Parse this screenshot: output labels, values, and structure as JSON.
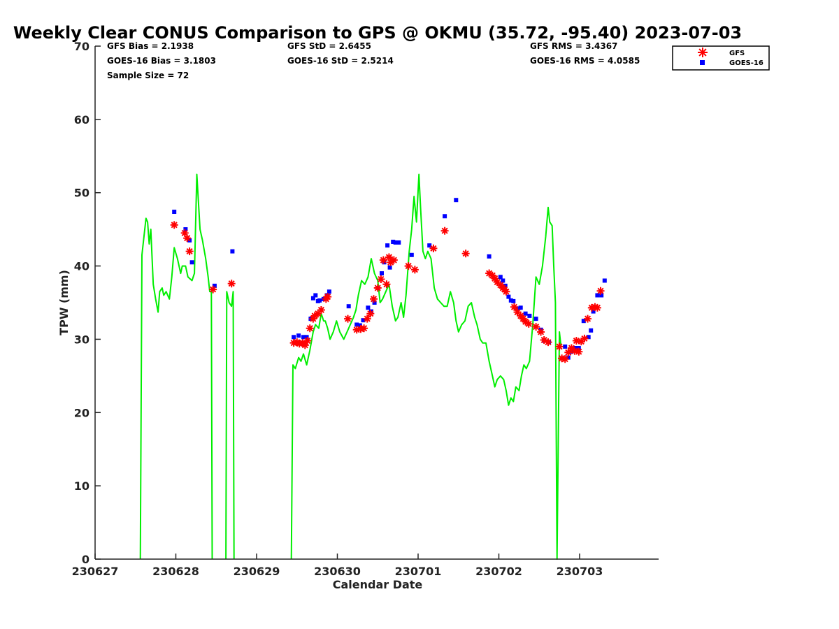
{
  "chart_data": {
    "type": "line",
    "title": "Weekly Clear CONUS Comparison to GPS @ OKMU (35.72, -95.40) 2023-07-03",
    "xlabel": "Calendar Date",
    "ylabel": "TPW (mm)",
    "xlim": [
      0,
      6.97
    ],
    "ylim": [
      0,
      70
    ],
    "x_ticks": [
      0,
      1,
      2,
      3,
      4,
      5,
      6
    ],
    "x_tick_labels": [
      "230627",
      "230628",
      "230629",
      "230630",
      "230701",
      "230702",
      "230703"
    ],
    "y_ticks": [
      0,
      10,
      20,
      30,
      40,
      50,
      60,
      70
    ],
    "grid": false,
    "legend_position": "top-right",
    "stats": {
      "gfs_bias": "GFS Bias = 2.1938",
      "goes_bias": "GOES-16 Bias = 3.1803",
      "sample_size": "Sample Size = 72",
      "gfs_std": "GFS StD = 2.6455",
      "goes_std": "GOES-16 StD = 2.5214",
      "gfs_rms": "GFS RMS = 3.4367",
      "goes_rms": "GOES-16 RMS = 4.0585"
    },
    "colors": {
      "gps": "#00ee00",
      "gfs": "#ff0000",
      "goes": "#0000ff"
    },
    "series": [
      {
        "marker": "line",
        "segments": [
          [
            [
              0.56,
              0
            ],
            [
              0.58,
              41.5
            ],
            [
              0.63,
              46.5
            ],
            [
              0.65,
              46
            ],
            [
              0.67,
              43
            ],
            [
              0.69,
              45
            ],
            [
              0.72,
              37.5
            ],
            [
              0.75,
              35.5
            ],
            [
              0.78,
              33.7
            ],
            [
              0.8,
              36.5
            ],
            [
              0.83,
              37
            ],
            [
              0.85,
              36
            ],
            [
              0.88,
              36.5
            ],
            [
              0.92,
              35.5
            ],
            [
              0.95,
              38.5
            ],
            [
              0.98,
              42.5
            ],
            [
              1.02,
              41
            ],
            [
              1.06,
              39
            ],
            [
              1.08,
              40
            ],
            [
              1.12,
              40
            ],
            [
              1.15,
              38.5
            ],
            [
              1.2,
              38
            ],
            [
              1.23,
              39
            ],
            [
              1.26,
              52.5
            ],
            [
              1.3,
              45
            ],
            [
              1.33,
              43.5
            ],
            [
              1.37,
              41
            ],
            [
              1.4,
              38.5
            ],
            [
              1.42,
              36.5
            ],
            [
              1.44,
              36.5
            ],
            [
              1.45,
              0
            ]
          ],
          [
            [
              1.62,
              0
            ],
            [
              1.63,
              36.5
            ],
            [
              1.66,
              35
            ],
            [
              1.69,
              34.5
            ],
            [
              1.71,
              36.5
            ],
            [
              1.72,
              0
            ]
          ]
        ]
      },
      {
        "marker": "line",
        "segments": [
          [
            [
              2.43,
              0
            ],
            [
              2.45,
              26.5
            ],
            [
              2.48,
              26
            ],
            [
              2.52,
              27.5
            ],
            [
              2.55,
              27
            ],
            [
              2.58,
              28
            ],
            [
              2.62,
              26.5
            ],
            [
              2.66,
              28.5
            ],
            [
              2.7,
              31
            ],
            [
              2.73,
              32
            ],
            [
              2.77,
              31.5
            ],
            [
              2.8,
              33.5
            ],
            [
              2.83,
              32.5
            ],
            [
              2.85,
              32.5
            ],
            [
              2.88,
              31.5
            ],
            [
              2.91,
              30
            ],
            [
              2.95,
              31
            ],
            [
              2.99,
              32.5
            ],
            [
              3.03,
              31
            ],
            [
              3.08,
              30
            ],
            [
              3.12,
              31
            ],
            [
              3.16,
              32
            ],
            [
              3.2,
              33
            ],
            [
              3.23,
              34
            ],
            [
              3.26,
              36
            ],
            [
              3.3,
              38
            ],
            [
              3.34,
              37.5
            ],
            [
              3.38,
              38.5
            ],
            [
              3.42,
              41
            ],
            [
              3.46,
              39
            ],
            [
              3.5,
              38
            ],
            [
              3.53,
              35
            ],
            [
              3.56,
              35.5
            ],
            [
              3.6,
              36.5
            ],
            [
              3.64,
              37.5
            ],
            [
              3.68,
              34.5
            ],
            [
              3.72,
              32.5
            ],
            [
              3.75,
              33
            ],
            [
              3.79,
              35
            ],
            [
              3.82,
              33
            ],
            [
              3.85,
              36
            ],
            [
              3.89,
              42
            ],
            [
              3.92,
              45
            ],
            [
              3.95,
              49.5
            ],
            [
              3.98,
              46
            ],
            [
              4.01,
              52.5
            ],
            [
              4.03,
              48
            ],
            [
              4.06,
              42
            ],
            [
              4.09,
              41
            ],
            [
              4.12,
              42
            ],
            [
              4.16,
              41
            ],
            [
              4.2,
              37
            ],
            [
              4.24,
              35.5
            ],
            [
              4.28,
              35
            ],
            [
              4.32,
              34.5
            ],
            [
              4.36,
              34.5
            ],
            [
              4.4,
              36.5
            ],
            [
              4.44,
              35
            ],
            [
              4.47,
              32.5
            ],
            [
              4.5,
              31
            ],
            [
              4.54,
              32
            ],
            [
              4.58,
              32.5
            ],
            [
              4.62,
              34.5
            ],
            [
              4.66,
              35
            ],
            [
              4.7,
              33
            ],
            [
              4.73,
              32
            ],
            [
              4.77,
              30
            ],
            [
              4.8,
              29.5
            ],
            [
              4.84,
              29.5
            ],
            [
              4.88,
              27
            ],
            [
              4.92,
              25
            ],
            [
              4.95,
              23.5
            ],
            [
              4.98,
              24.5
            ],
            [
              5.02,
              25
            ],
            [
              5.06,
              24.5
            ],
            [
              5.09,
              23
            ],
            [
              5.12,
              21
            ],
            [
              5.15,
              22
            ],
            [
              5.18,
              21.5
            ],
            [
              5.21,
              23.5
            ],
            [
              5.25,
              23
            ],
            [
              5.28,
              25
            ],
            [
              5.31,
              26.5
            ],
            [
              5.34,
              26
            ],
            [
              5.38,
              27
            ],
            [
              5.42,
              32
            ],
            [
              5.46,
              38.5
            ],
            [
              5.5,
              37.5
            ],
            [
              5.54,
              40
            ],
            [
              5.58,
              44
            ],
            [
              5.61,
              48
            ],
            [
              5.63,
              46
            ],
            [
              5.66,
              45.5
            ],
            [
              5.68,
              40
            ],
            [
              5.7,
              35
            ],
            [
              5.72,
              0
            ],
            [
              5.75,
              31
            ],
            [
              5.77,
              29
            ]
          ]
        ]
      },
      {
        "name": "GFS",
        "marker": "star",
        "points": [
          [
            0.98,
            45.6
          ],
          [
            1.11,
            44.5
          ],
          [
            1.14,
            43.8
          ],
          [
            1.17,
            42
          ],
          [
            1.46,
            36.8
          ],
          [
            1.69,
            37.6
          ],
          [
            2.46,
            29.5
          ],
          [
            2.5,
            29.6
          ],
          [
            2.53,
            29.4
          ],
          [
            2.57,
            29.5
          ],
          [
            2.6,
            29.2
          ],
          [
            2.63,
            29.8
          ],
          [
            2.66,
            31.5
          ],
          [
            2.7,
            32.8
          ],
          [
            2.72,
            33.2
          ],
          [
            2.76,
            33.5
          ],
          [
            2.8,
            34
          ],
          [
            2.86,
            35.5
          ],
          [
            2.88,
            35.8
          ],
          [
            3.13,
            32.8
          ],
          [
            3.24,
            31.3
          ],
          [
            3.29,
            31.4
          ],
          [
            3.33,
            31.5
          ],
          [
            3.37,
            32.8
          ],
          [
            3.41,
            33.5
          ],
          [
            3.45,
            35.5
          ],
          [
            3.5,
            37
          ],
          [
            3.54,
            38.2
          ],
          [
            3.57,
            40.8
          ],
          [
            3.61,
            37.5
          ],
          [
            3.64,
            41.2
          ],
          [
            3.66,
            40.5
          ],
          [
            3.7,
            40.8
          ],
          [
            3.88,
            40
          ],
          [
            3.96,
            39.5
          ],
          [
            4.19,
            42.4
          ],
          [
            4.33,
            44.8
          ],
          [
            4.59,
            41.7
          ],
          [
            4.88,
            39
          ],
          [
            4.92,
            38.7
          ],
          [
            4.95,
            38.3
          ],
          [
            4.98,
            37.8
          ],
          [
            5.02,
            37.4
          ],
          [
            5.05,
            37
          ],
          [
            5.07,
            36.8
          ],
          [
            5.09,
            36.5
          ],
          [
            5.19,
            34.4
          ],
          [
            5.23,
            33.7
          ],
          [
            5.27,
            33.2
          ],
          [
            5.3,
            32.8
          ],
          [
            5.33,
            32.4
          ],
          [
            5.37,
            32.1
          ],
          [
            5.46,
            31.7
          ],
          [
            5.52,
            31
          ],
          [
            5.56,
            29.9
          ],
          [
            5.61,
            29.6
          ],
          [
            5.75,
            29
          ],
          [
            5.78,
            27.4
          ],
          [
            5.82,
            27.3
          ],
          [
            5.86,
            28.2
          ],
          [
            5.9,
            28.8
          ],
          [
            5.94,
            28.4
          ],
          [
            5.96,
            29.8
          ],
          [
            5.99,
            28.3
          ],
          [
            6.02,
            29.7
          ],
          [
            6.06,
            30.1
          ],
          [
            6.1,
            32.8
          ],
          [
            6.15,
            34.3
          ],
          [
            6.19,
            34.4
          ],
          [
            6.22,
            34.3
          ],
          [
            6.26,
            36.6
          ]
        ]
      },
      {
        "name": "GOES-16",
        "marker": "square",
        "points": [
          [
            0.98,
            47.4
          ],
          [
            1.12,
            45
          ],
          [
            1.17,
            43.5
          ],
          [
            1.2,
            40.5
          ],
          [
            1.48,
            37.3
          ],
          [
            1.7,
            42
          ],
          [
            2.46,
            30.3
          ],
          [
            2.52,
            30.5
          ],
          [
            2.58,
            30.3
          ],
          [
            2.62,
            30.3
          ],
          [
            2.67,
            32.8
          ],
          [
            2.7,
            35.6
          ],
          [
            2.73,
            36
          ],
          [
            2.76,
            35.2
          ],
          [
            2.78,
            35.3
          ],
          [
            2.83,
            35.5
          ],
          [
            2.87,
            36
          ],
          [
            2.9,
            36.5
          ],
          [
            3.14,
            34.5
          ],
          [
            3.24,
            32
          ],
          [
            3.28,
            31.9
          ],
          [
            3.32,
            32.6
          ],
          [
            3.38,
            34.3
          ],
          [
            3.42,
            33.8
          ],
          [
            3.46,
            35
          ],
          [
            3.5,
            37
          ],
          [
            3.55,
            39
          ],
          [
            3.58,
            40.5
          ],
          [
            3.62,
            42.8
          ],
          [
            3.65,
            39.8
          ],
          [
            3.69,
            43.3
          ],
          [
            3.72,
            43.2
          ],
          [
            3.76,
            43.2
          ],
          [
            3.92,
            41.5
          ],
          [
            4.14,
            42.8
          ],
          [
            4.33,
            46.8
          ],
          [
            4.47,
            49
          ],
          [
            4.88,
            41.3
          ],
          [
            5.02,
            38.5
          ],
          [
            5.05,
            38
          ],
          [
            5.08,
            37.3
          ],
          [
            5.12,
            35.8
          ],
          [
            5.15,
            35.3
          ],
          [
            5.18,
            35.2
          ],
          [
            5.22,
            34.2
          ],
          [
            5.27,
            34.3
          ],
          [
            5.33,
            33.5
          ],
          [
            5.38,
            33.2
          ],
          [
            5.46,
            32.8
          ],
          [
            5.52,
            31.3
          ],
          [
            5.56,
            29.8
          ],
          [
            5.62,
            29.6
          ],
          [
            5.82,
            29
          ],
          [
            5.86,
            27.5
          ],
          [
            5.9,
            28.3
          ],
          [
            5.95,
            28.8
          ],
          [
            5.99,
            28.8
          ],
          [
            6.05,
            32.5
          ],
          [
            6.11,
            30.3
          ],
          [
            6.14,
            31.2
          ],
          [
            6.17,
            33.8
          ],
          [
            6.22,
            36
          ],
          [
            6.27,
            36
          ],
          [
            6.31,
            38
          ]
        ]
      }
    ]
  }
}
